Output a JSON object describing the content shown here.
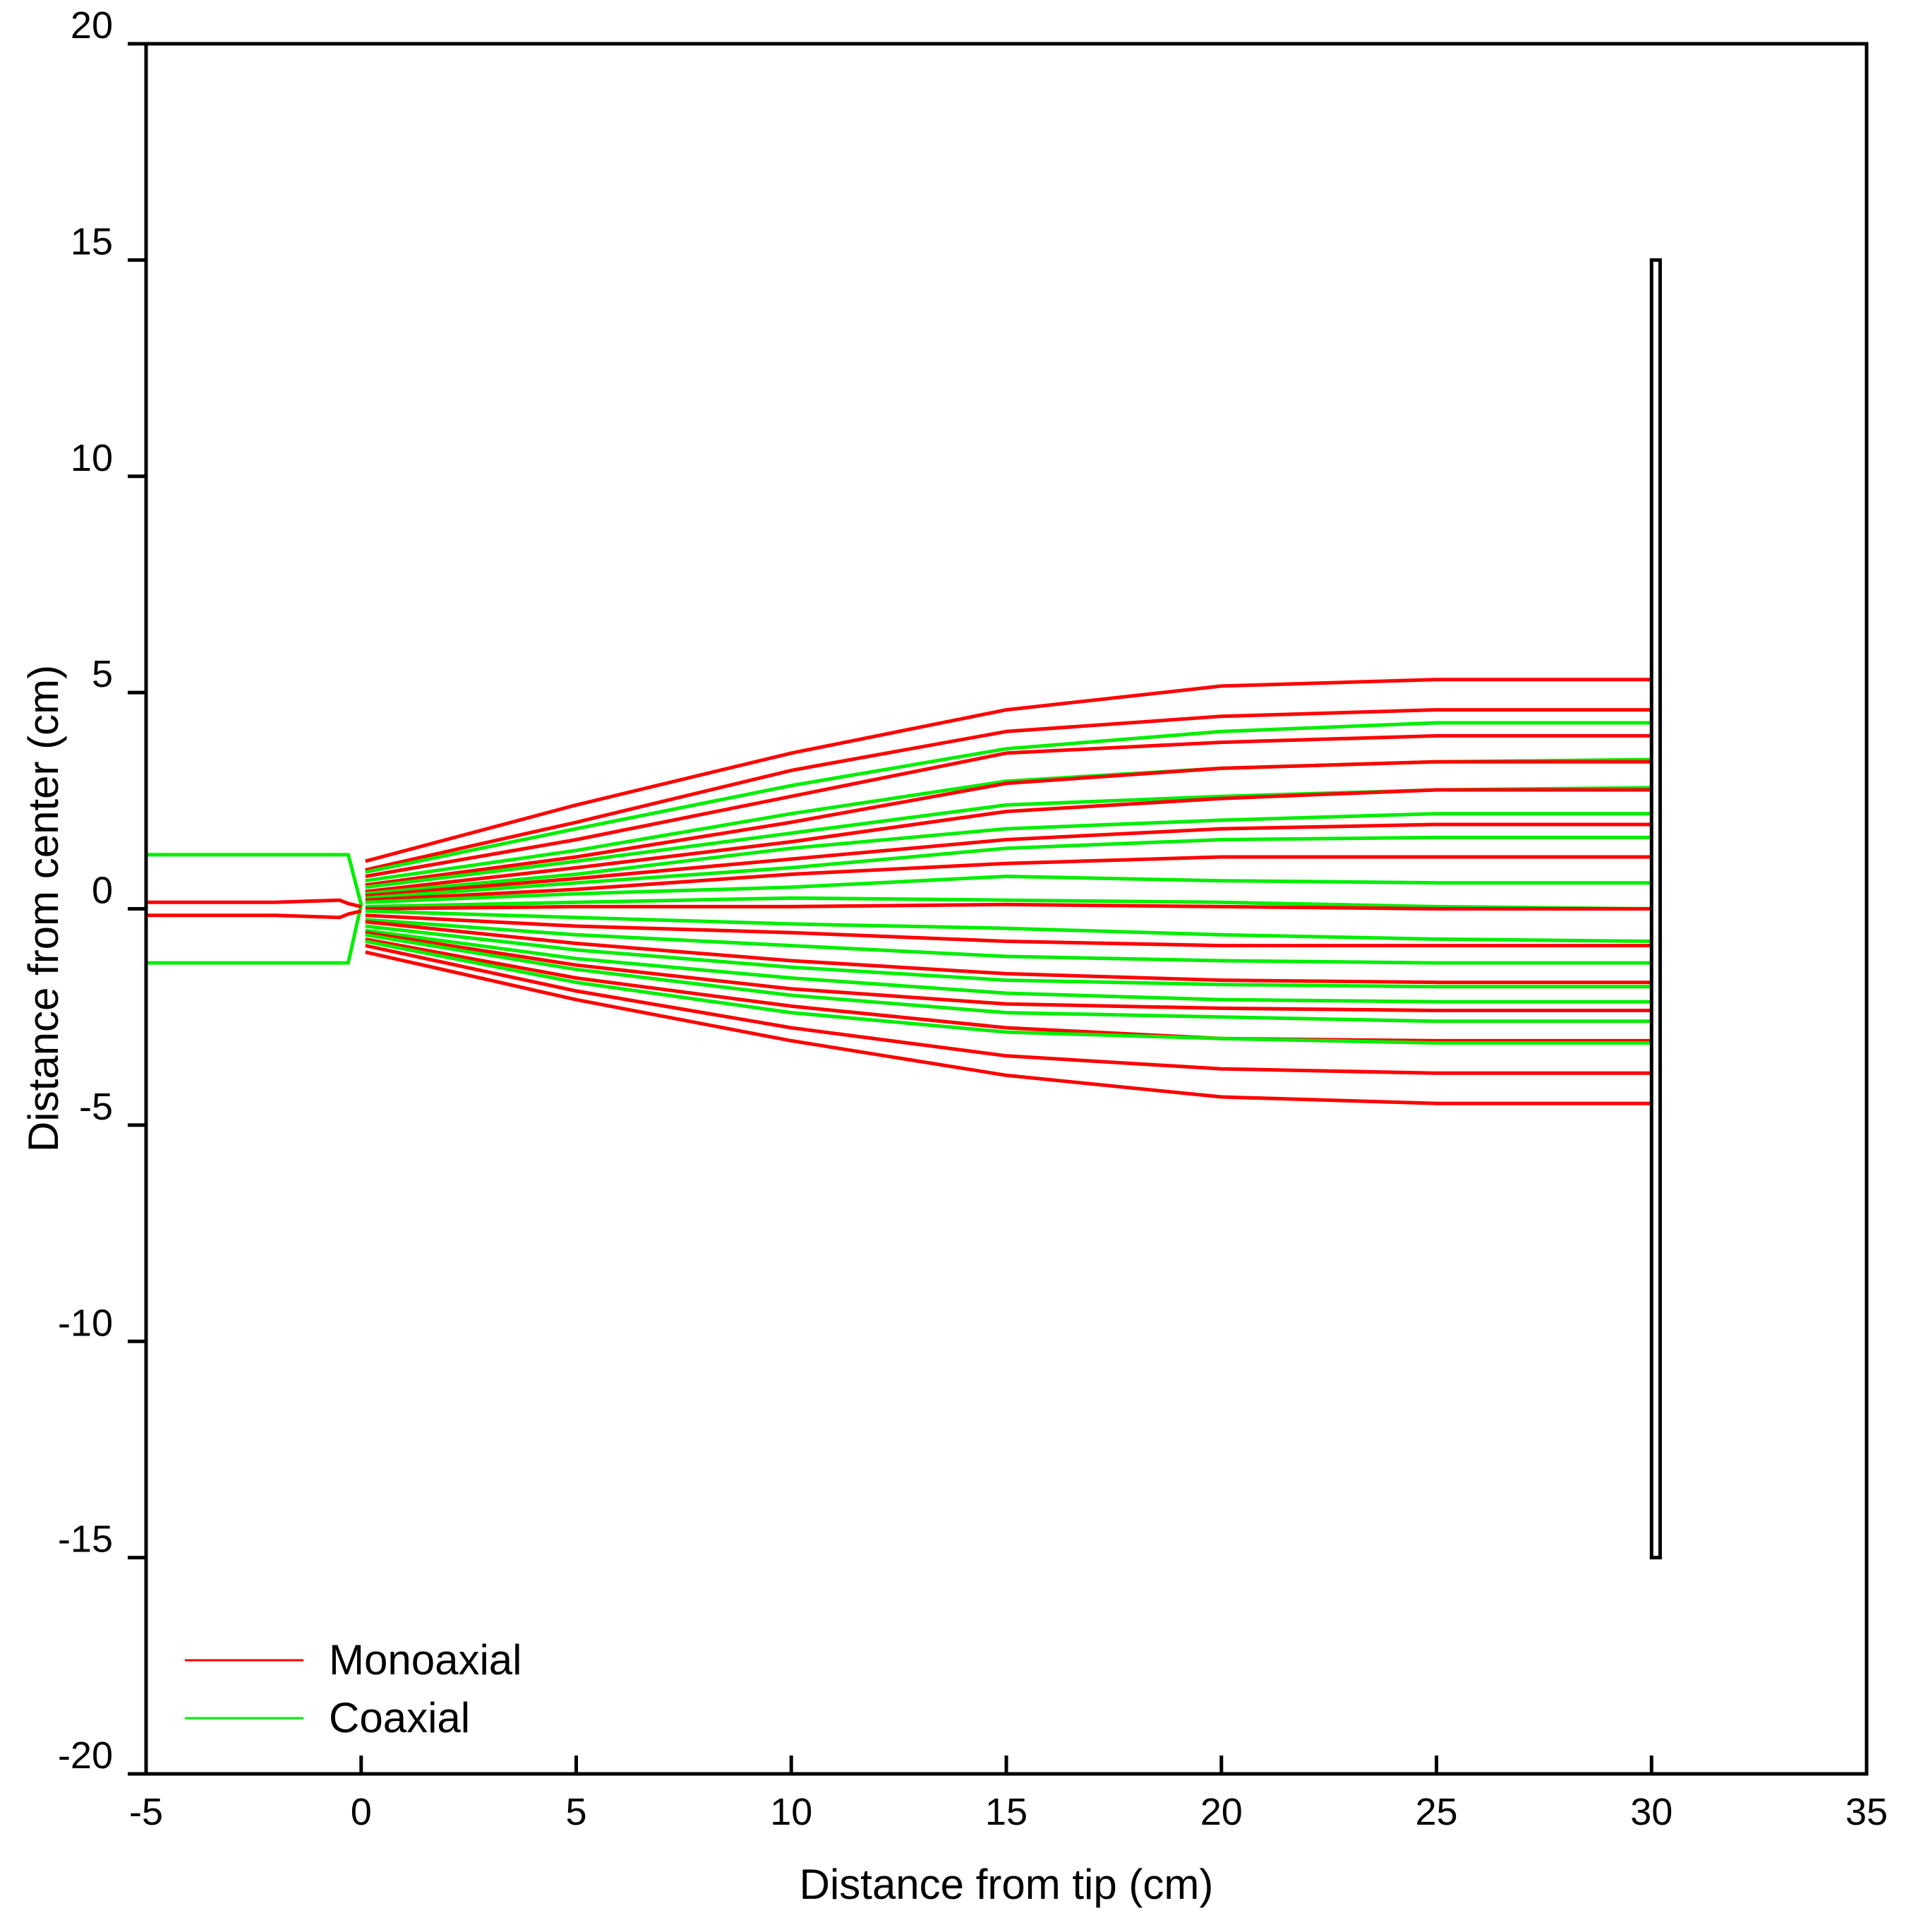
{
  "chart_data": {
    "type": "line",
    "title": "",
    "xlabel": "Distance from tip (cm)",
    "ylabel": "Distance from center (cm)",
    "xlim": [
      -5,
      35
    ],
    "ylim": [
      -20,
      20
    ],
    "xticks": [
      -5,
      0,
      5,
      10,
      15,
      20,
      25,
      30,
      35
    ],
    "yticks": [
      -20,
      -15,
      -10,
      -5,
      0,
      5,
      10,
      15,
      20
    ],
    "xtick_labels": [
      "-5",
      "0",
      "5",
      "10",
      "15",
      "20",
      "25",
      "30",
      "35"
    ],
    "ytick_labels": [
      "-20",
      "-15",
      "-10",
      "-5",
      "0",
      "5",
      "10",
      "15",
      "20"
    ],
    "grid": false,
    "legend_position": "bottom-left",
    "legend": [
      {
        "label": "Monoaxial",
        "color": "#ff0000"
      },
      {
        "label": "Coaxial",
        "color": "#00ee00"
      }
    ],
    "colors": {
      "monoaxial": "#ff0000",
      "coaxial": "#00ee00",
      "plate": "#000000"
    },
    "collector_plate": {
      "x": [
        30.0,
        30.2
      ],
      "y": [
        -15,
        15
      ]
    },
    "needles": [
      {
        "series": "Coaxial",
        "x": [
          -5,
          -0.3,
          0,
          -0.3,
          -5
        ],
        "y": [
          1.25,
          1.25,
          0.1,
          -1.25,
          -1.25
        ]
      },
      {
        "series": "Monoaxial",
        "x": [
          -5,
          -2,
          -0.5,
          -0.3,
          0
        ],
        "y": [
          0.15,
          0.15,
          0.2,
          0.12,
          0.05
        ]
      },
      {
        "series": "Monoaxial",
        "x": [
          -5,
          -2,
          -0.5,
          -0.3,
          0
        ],
        "y": [
          -0.15,
          -0.15,
          -0.2,
          -0.12,
          -0.05
        ]
      }
    ],
    "x": [
      0.1,
      5,
      10,
      15,
      20,
      25,
      30
    ],
    "series": [
      {
        "name": "Monoaxial",
        "values": [
          1.1,
          2.4,
          3.6,
          4.6,
          5.15,
          5.3,
          5.3
        ]
      },
      {
        "name": "Monoaxial",
        "values": [
          0.9,
          2.0,
          3.2,
          4.1,
          4.45,
          4.6,
          4.6
        ]
      },
      {
        "name": "Coaxial",
        "values": [
          0.85,
          1.85,
          2.85,
          3.7,
          4.1,
          4.3,
          4.3
        ]
      },
      {
        "name": "Monoaxial",
        "values": [
          0.75,
          1.6,
          2.6,
          3.6,
          3.85,
          4.0,
          4.0
        ]
      },
      {
        "name": "Coaxial",
        "values": [
          0.65,
          1.35,
          2.2,
          2.95,
          3.25,
          3.4,
          3.45
        ]
      },
      {
        "name": "Monoaxial",
        "values": [
          0.55,
          1.2,
          2.0,
          2.9,
          3.25,
          3.4,
          3.4
        ]
      },
      {
        "name": "Coaxial",
        "values": [
          0.5,
          1.1,
          1.75,
          2.4,
          2.6,
          2.75,
          2.8
        ]
      },
      {
        "name": "Monoaxial",
        "values": [
          0.4,
          0.95,
          1.55,
          2.25,
          2.55,
          2.75,
          2.75
        ]
      },
      {
        "name": "Coaxial",
        "values": [
          0.35,
          0.8,
          1.4,
          1.85,
          2.05,
          2.2,
          2.2
        ]
      },
      {
        "name": "Monoaxial",
        "values": [
          0.3,
          0.7,
          1.15,
          1.6,
          1.85,
          1.95,
          1.95
        ]
      },
      {
        "name": "Coaxial",
        "values": [
          0.25,
          0.6,
          0.95,
          1.4,
          1.6,
          1.65,
          1.65
        ]
      },
      {
        "name": "Monoaxial",
        "values": [
          0.2,
          0.45,
          0.8,
          1.05,
          1.2,
          1.2,
          1.2
        ]
      },
      {
        "name": "Coaxial",
        "values": [
          0.15,
          0.35,
          0.5,
          0.75,
          0.65,
          0.6,
          0.6
        ]
      },
      {
        "name": "Coaxial",
        "values": [
          0.05,
          0.15,
          0.25,
          0.2,
          0.15,
          0.05,
          0.0
        ]
      },
      {
        "name": "Monoaxial",
        "values": [
          0.0,
          0.05,
          0.05,
          0.1,
          0.05,
          0.0,
          0.0
        ]
      },
      {
        "name": "Coaxial",
        "values": [
          -0.05,
          -0.2,
          -0.35,
          -0.45,
          -0.6,
          -0.7,
          -0.75
        ]
      },
      {
        "name": "Monoaxial",
        "values": [
          -0.15,
          -0.4,
          -0.55,
          -0.75,
          -0.85,
          -0.85,
          -0.85
        ]
      },
      {
        "name": "Coaxial",
        "values": [
          -0.25,
          -0.6,
          -0.85,
          -1.1,
          -1.2,
          -1.25,
          -1.25
        ]
      },
      {
        "name": "Monoaxial",
        "values": [
          -0.3,
          -0.8,
          -1.2,
          -1.5,
          -1.65,
          -1.7,
          -1.7
        ]
      },
      {
        "name": "Coaxial",
        "values": [
          -0.4,
          -0.95,
          -1.35,
          -1.65,
          -1.75,
          -1.8,
          -1.8
        ]
      },
      {
        "name": "Coaxial",
        "values": [
          -0.5,
          -1.15,
          -1.6,
          -1.95,
          -2.1,
          -2.15,
          -2.15
        ]
      },
      {
        "name": "Monoaxial",
        "values": [
          -0.55,
          -1.3,
          -1.85,
          -2.2,
          -2.3,
          -2.35,
          -2.35
        ]
      },
      {
        "name": "Coaxial",
        "values": [
          -0.6,
          -1.4,
          -2.0,
          -2.4,
          -2.5,
          -2.6,
          -2.6
        ]
      },
      {
        "name": "Monoaxial",
        "values": [
          -0.7,
          -1.6,
          -2.25,
          -2.75,
          -3.0,
          -3.05,
          -3.05
        ]
      },
      {
        "name": "Coaxial",
        "values": [
          -0.75,
          -1.7,
          -2.4,
          -2.85,
          -3.0,
          -3.1,
          -3.1
        ]
      },
      {
        "name": "Monoaxial",
        "values": [
          -0.85,
          -1.9,
          -2.75,
          -3.4,
          -3.7,
          -3.8,
          -3.8
        ]
      },
      {
        "name": "Monoaxial",
        "values": [
          -1.0,
          -2.1,
          -3.05,
          -3.85,
          -4.35,
          -4.5,
          -4.5
        ]
      }
    ]
  }
}
